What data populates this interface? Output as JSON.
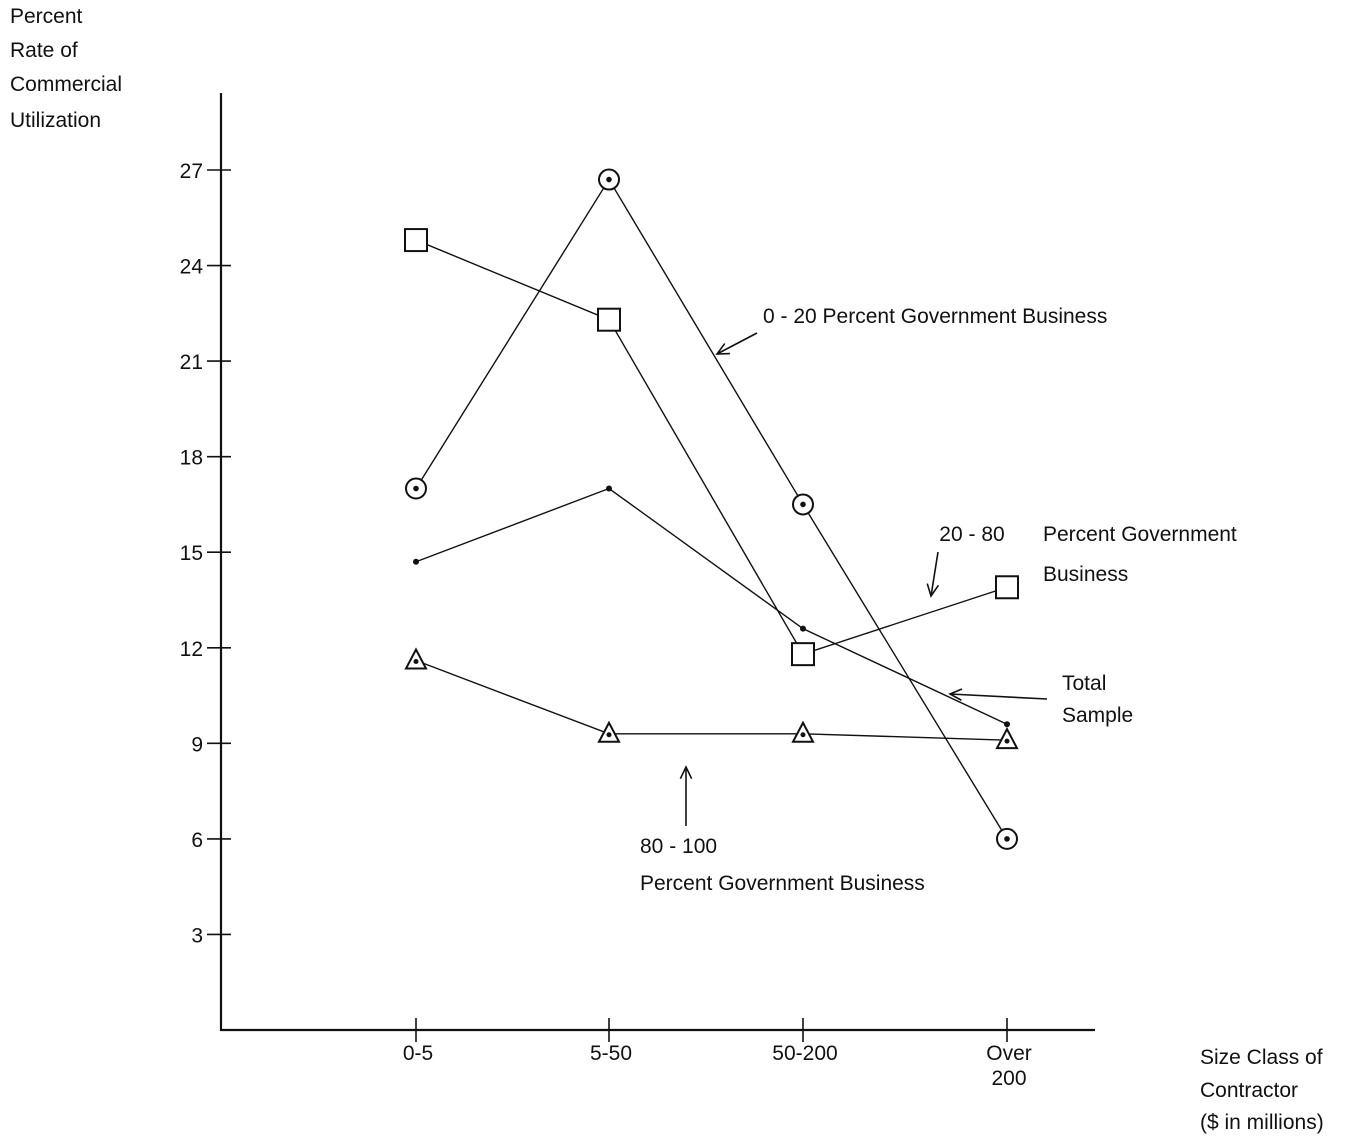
{
  "chart_data": {
    "type": "line",
    "title": "",
    "ylabel_lines": [
      "Percent",
      "Rate of",
      "Commercial",
      "Utilization"
    ],
    "xlabel_lines": [
      "Size Class of",
      "Contractor",
      "($ in millions)"
    ],
    "categories": [
      "0-5",
      "5-50",
      "50-200",
      "Over 200"
    ],
    "category_tick_lines": [
      [
        "0-5"
      ],
      [
        "5-50"
      ],
      [
        "50-200"
      ],
      [
        "Over",
        "200"
      ]
    ],
    "yticks": [
      3,
      6,
      9,
      12,
      15,
      18,
      21,
      24,
      27
    ],
    "ylim": [
      0,
      29.5
    ],
    "grid": false,
    "series": [
      {
        "name": "0 - 20 Percent Government Business",
        "marker": "circle-dot",
        "values": [
          17.0,
          26.7,
          16.5,
          6.0
        ],
        "annotation_lines": [
          "0 - 20 Percent Government Business"
        ]
      },
      {
        "name": "20 - 80 Percent Government Business",
        "marker": "square",
        "values": [
          24.8,
          22.3,
          11.8,
          13.9
        ],
        "annotation_lines": [
          "20 - 80",
          "Percent Government",
          "Business"
        ]
      },
      {
        "name": "Total Sample",
        "marker": "dot",
        "values": [
          14.7,
          17.0,
          12.6,
          9.6
        ],
        "annotation_lines": [
          "Total",
          "Sample"
        ]
      },
      {
        "name": "80 - 100 Percent Government Business",
        "marker": "triangle-dot",
        "values": [
          11.6,
          9.3,
          9.3,
          9.1
        ],
        "annotation_lines": [
          "80 - 100",
          "Percent Government Business"
        ]
      }
    ]
  }
}
